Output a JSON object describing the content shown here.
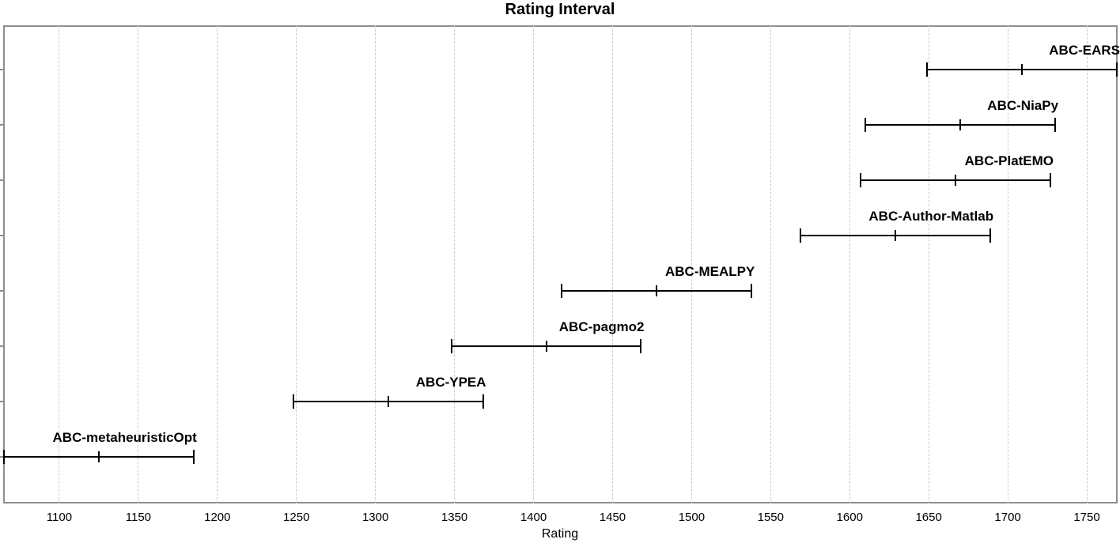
{
  "chart_data": {
    "type": "scatter",
    "style": "horizontal-interval-errorbar",
    "title": "Rating Interval",
    "xlabel": "Rating",
    "ylabel": "",
    "xlim": [
      1064.5,
      1769.5
    ],
    "x_ticks": [
      1100,
      1150,
      1200,
      1250,
      1300,
      1350,
      1400,
      1450,
      1500,
      1550,
      1600,
      1650,
      1700,
      1750
    ],
    "grid": "vertical-dashed",
    "legend": "none",
    "series": [
      {
        "label": "ABC-EARS",
        "low": 1649,
        "mid": 1709,
        "high": 1769
      },
      {
        "label": "ABC-NiaPy",
        "low": 1610,
        "mid": 1670,
        "high": 1730
      },
      {
        "label": "ABC-PlatEMO",
        "low": 1607,
        "mid": 1667,
        "high": 1727
      },
      {
        "label": "ABC-Author-Matlab",
        "low": 1569,
        "mid": 1629,
        "high": 1689
      },
      {
        "label": "ABC-MEALPY",
        "low": 1418,
        "mid": 1478,
        "high": 1538
      },
      {
        "label": "ABC-pagmo2",
        "low": 1348,
        "mid": 1408,
        "high": 1468
      },
      {
        "label": "ABC-YPEA",
        "low": 1248,
        "mid": 1308,
        "high": 1368
      },
      {
        "label": "ABC-metaheuristicOpt",
        "low": 1065,
        "mid": 1125,
        "high": 1185
      }
    ],
    "colors": {
      "bar": "#000000",
      "border": "#8f8f8f",
      "grid": "#c9c9c9",
      "background": "#ffffff",
      "text": "#000000"
    }
  }
}
